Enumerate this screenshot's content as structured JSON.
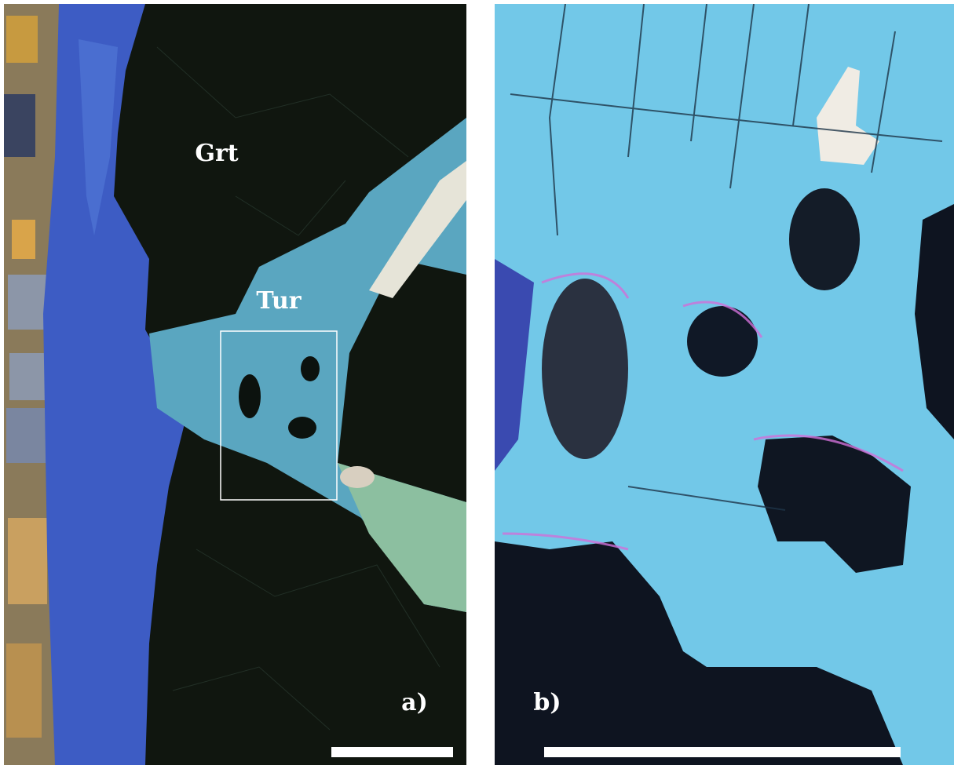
{
  "panels": [
    {
      "label": "a)",
      "annotations": [
        "Grt",
        "Tur"
      ]
    },
    {
      "label": "b)"
    }
  ]
}
